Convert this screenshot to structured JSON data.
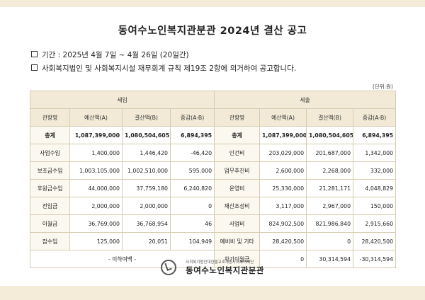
{
  "title": "동여수노인복지관분관 2024년 결산 공고",
  "period": "기간 : 2025년 4월 7일 ~ 4월 26일 (20일간)",
  "basis": "사회복지법인 및 사회복지시설 재무회계 규칙 제19조 2항에 의거하여 공고합니다.",
  "unit": "(단위:원)",
  "section_headers": {
    "income": "세입",
    "expense": "세출"
  },
  "columns": [
    "관항명",
    "예산액(A)",
    "결산액(B)",
    "증감(A-B)",
    "관항명",
    "예산액(A)",
    "결산액(B)",
    "증감(A-B)"
  ],
  "rows": [
    [
      "총계",
      "1,087,399,000",
      "1,080,504,605",
      "6,894,395",
      "총계",
      "1,087,399,000",
      "1,080,504,605",
      "6,894,395"
    ],
    [
      "사업수입",
      "1,400,000",
      "1,446,420",
      "-46,420",
      "인건비",
      "203,029,000",
      "201,687,000",
      "1,342,000"
    ],
    [
      "보조금수입",
      "1,003,105,000",
      "1,002,510,000",
      "595,000",
      "업무추진비",
      "2,600,000",
      "2,268,000",
      "332,000"
    ],
    [
      "후원금수입",
      "44,000,000",
      "37,759,180",
      "6,240,820",
      "운영비",
      "25,330,000",
      "21,281,171",
      "4,048,829"
    ],
    [
      "전입금",
      "2,000,000",
      "2,000,000",
      "0",
      "재산조성비",
      "3,117,000",
      "2,967,000",
      "150,000"
    ],
    [
      "이월금",
      "36,769,000",
      "36,768,954",
      "46",
      "사업비",
      "824,902,500",
      "821,986,840",
      "2,915,660"
    ],
    [
      "잡수입",
      "125,000",
      "20,051",
      "104,949",
      "예비비 및 기타",
      "28,420,500",
      "0",
      "28,420,500"
    ]
  ],
  "last_row": {
    "income_note": "- 이하여백 -",
    "expense_label": "차기이월금",
    "budget": "0",
    "settled": "30,314,594",
    "diff": "-30,314,594"
  },
  "footer": {
    "corporation": "사회복지법인대한불교조계종사회복지재단",
    "name": "동여수노인복지관분관"
  }
}
